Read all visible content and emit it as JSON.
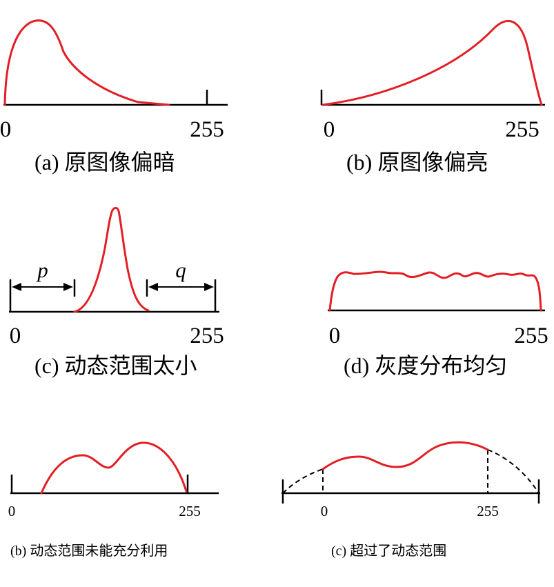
{
  "accent_color": "#e31e24",
  "panels": [
    {
      "id": "a",
      "caption": "(a) 原图像偏暗",
      "x_min": "0",
      "x_max": "255"
    },
    {
      "id": "b1",
      "caption": "(b) 原图像偏亮",
      "x_min": "0",
      "x_max": "255"
    },
    {
      "id": "c1",
      "caption": "(c) 动态范围太小",
      "x_min": "0",
      "x_max": "255",
      "left_gap_label": "p",
      "right_gap_label": "q"
    },
    {
      "id": "d",
      "caption": "(d) 灰度分布均匀",
      "x_min": "0",
      "x_max": "255"
    },
    {
      "id": "b2",
      "caption": "(b) 动态范围未能充分利用",
      "x_min": "0",
      "x_max": "255"
    },
    {
      "id": "c2",
      "caption": "(c) 超过了动态范围",
      "x_min": "0",
      "x_max": "255"
    }
  ]
}
